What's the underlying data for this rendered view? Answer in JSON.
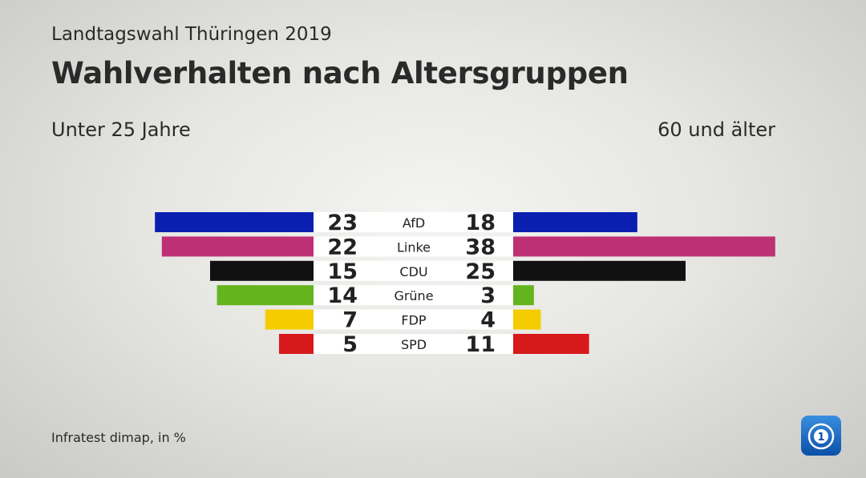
{
  "header": {
    "supertitle": "Landtagswahl Thüringen 2019",
    "title": "Wahlverhalten nach Altersgruppen"
  },
  "groups": {
    "left_label": "Unter 25 Jahre",
    "right_label": "60 und älter"
  },
  "footer": {
    "source": "Infratest dimap, in %"
  },
  "chart_data": {
    "type": "bar",
    "orientation": "diverging-horizontal",
    "title": "Wahlverhalten nach Altersgruppen",
    "categories": [
      "AfD",
      "Linke",
      "CDU",
      "Grüne",
      "FDP",
      "SPD"
    ],
    "series": [
      {
        "name": "Unter 25 Jahre",
        "values": [
          23,
          22,
          15,
          14,
          7,
          5
        ]
      },
      {
        "name": "60 und älter",
        "values": [
          18,
          38,
          25,
          3,
          4,
          11
        ]
      }
    ],
    "colors": [
      "#0a1fb0",
      "#be3075",
      "#111111",
      "#64b41e",
      "#f5cc00",
      "#d7191c"
    ],
    "unit": "%"
  }
}
